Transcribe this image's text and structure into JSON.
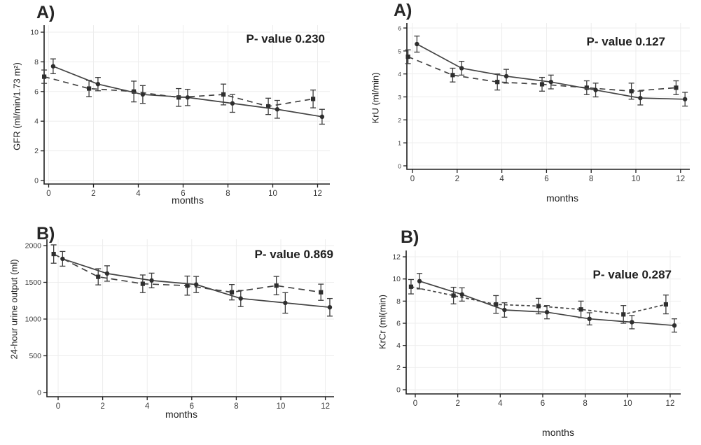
{
  "figure": {
    "description": "Four-panel line chart figure; each panel compares two groups over 12 months: solid line with filled circle markers (points offset +0.2 month) and dashed line with filled square markers (points offset -0.2 month); vertical error bars with caps on every point; light gray gridlines; no legend.",
    "background_color": "#ffffff",
    "line_color": "#434343",
    "axis_color": "#1f1f1f",
    "grid_color": "#ededed",
    "text_color": "#2a2a2a"
  },
  "chart_data": [
    {
      "id": "gfr",
      "type": "line",
      "panel_label": "A)",
      "p_value_label": "P- value 0.230",
      "ylabel": "GFR (ml/min/1.73 m²)",
      "xlabel": "months",
      "x": [
        0,
        2,
        4,
        6,
        8,
        10,
        12
      ],
      "xticks": [
        0,
        2,
        4,
        6,
        8,
        10,
        12
      ],
      "yticks": [
        0,
        2,
        4,
        6,
        8,
        10
      ],
      "ylim": [
        0,
        10
      ],
      "series": [
        {
          "name": "solid-circles",
          "line": "solid",
          "marker": "circle",
          "x_offset": 0.2,
          "values": [
            7.7,
            6.5,
            5.8,
            5.6,
            5.2,
            4.8,
            4.3
          ],
          "errors": [
            0.5,
            0.45,
            0.6,
            0.55,
            0.6,
            0.6,
            0.5
          ]
        },
        {
          "name": "dashed-squares",
          "line": "dashed",
          "marker": "square",
          "x_offset": -0.2,
          "values": [
            7.0,
            6.2,
            6.0,
            5.6,
            5.8,
            5.0,
            5.5
          ],
          "errors": [
            0.45,
            0.55,
            0.7,
            0.6,
            0.7,
            0.55,
            0.6
          ]
        }
      ]
    },
    {
      "id": "kru",
      "type": "line",
      "panel_label": "A)",
      "p_value_label": "P- value 0.127",
      "ylabel": "KrU (ml/min)",
      "xlabel": "months",
      "x": [
        0,
        2,
        4,
        6,
        8,
        10,
        12
      ],
      "xticks": [
        0,
        2,
        4,
        6,
        8,
        10,
        12
      ],
      "yticks": [
        0,
        1,
        2,
        3,
        4,
        5,
        6
      ],
      "ylim": [
        0,
        6
      ],
      "series": [
        {
          "name": "solid-circles",
          "line": "solid",
          "marker": "circle",
          "x_offset": 0.2,
          "values": [
            5.3,
            4.25,
            3.9,
            3.65,
            3.3,
            2.95,
            2.9
          ],
          "errors": [
            0.35,
            0.3,
            0.3,
            0.3,
            0.3,
            0.3,
            0.3
          ]
        },
        {
          "name": "dashed-squares",
          "line": "dashed",
          "marker": "square",
          "x_offset": -0.2,
          "values": [
            4.75,
            3.95,
            3.65,
            3.55,
            3.4,
            3.25,
            3.4
          ],
          "errors": [
            0.3,
            0.3,
            0.35,
            0.3,
            0.3,
            0.35,
            0.3
          ]
        }
      ]
    },
    {
      "id": "urine",
      "type": "line",
      "panel_label": "B)",
      "p_value_label": "P- value 0.869",
      "ylabel": "24-hour urine output (ml)",
      "xlabel": "months",
      "x": [
        0,
        2,
        4,
        6,
        8,
        10,
        12
      ],
      "xticks": [
        0,
        2,
        4,
        6,
        8,
        10,
        12
      ],
      "yticks": [
        0,
        500,
        1000,
        1500,
        2000
      ],
      "ylim": [
        0,
        2000
      ],
      "series": [
        {
          "name": "solid-circles",
          "line": "solid",
          "marker": "circle",
          "x_offset": 0.2,
          "values": [
            1820,
            1620,
            1525,
            1470,
            1280,
            1220,
            1160
          ],
          "errors": [
            100,
            105,
            100,
            110,
            110,
            140,
            120
          ]
        },
        {
          "name": "dashed-squares",
          "line": "dashed",
          "marker": "square",
          "x_offset": -0.2,
          "values": [
            1885,
            1575,
            1480,
            1455,
            1365,
            1455,
            1365
          ],
          "errors": [
            125,
            110,
            120,
            130,
            105,
            125,
            110
          ]
        }
      ]
    },
    {
      "id": "krcr",
      "type": "line",
      "panel_label": "B)",
      "p_value_label": "P- value 0.287",
      "ylabel": "KrCr (ml(min)",
      "xlabel": "months",
      "x": [
        0,
        2,
        4,
        6,
        8,
        10,
        12
      ],
      "xticks": [
        0,
        2,
        4,
        6,
        8,
        10,
        12
      ],
      "yticks": [
        0,
        2,
        4,
        6,
        8,
        10,
        12
      ],
      "ylim": [
        0,
        12
      ],
      "series": [
        {
          "name": "solid-circles",
          "line": "solid",
          "marker": "circle",
          "x_offset": 0.2,
          "values": [
            9.8,
            8.6,
            7.2,
            7.0,
            6.4,
            6.1,
            5.8
          ],
          "errors": [
            0.7,
            0.6,
            0.65,
            0.6,
            0.55,
            0.6,
            0.6
          ]
        },
        {
          "name": "dashed-squares",
          "line": "dashed",
          "marker": "square",
          "x_offset": -0.2,
          "values": [
            9.3,
            8.5,
            7.7,
            7.55,
            7.25,
            6.8,
            7.7
          ],
          "errors": [
            0.65,
            0.75,
            0.8,
            0.7,
            0.75,
            0.8,
            0.85
          ]
        }
      ]
    }
  ]
}
